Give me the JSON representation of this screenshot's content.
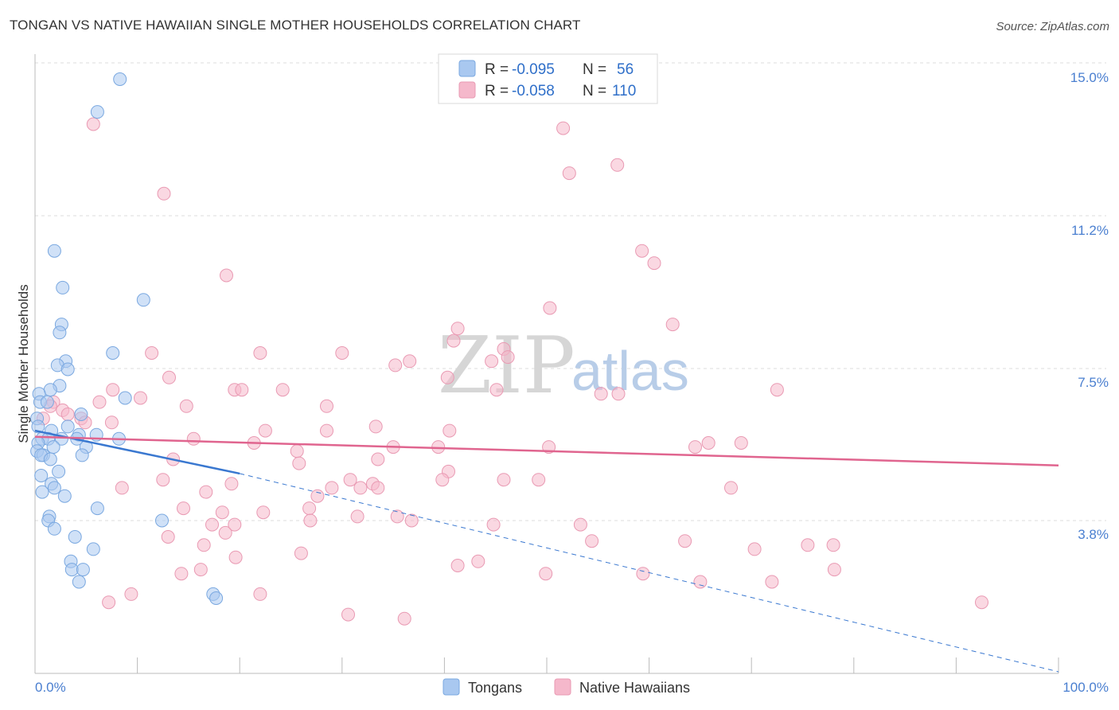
{
  "header": {
    "title": "TONGAN VS NATIVE HAWAIIAN SINGLE MOTHER HOUSEHOLDS CORRELATION CHART",
    "source": "Source: ZipAtlas.com"
  },
  "watermark": {
    "zip": "ZIP",
    "atlas": "atlas"
  },
  "legend": {
    "rows": [
      {
        "r_label": "R =",
        "r_value": "-0.095",
        "n_label": "N =",
        "n_value": "56",
        "color": "#a9c8f0"
      },
      {
        "r_label": "R =",
        "r_value": "-0.058",
        "n_label": "N =",
        "n_value": "110",
        "color": "#f5b8cb"
      }
    ]
  },
  "bottom_legend": {
    "items": [
      {
        "label": "Tongans",
        "color": "#a9c8f0"
      },
      {
        "label": "Native Hawaiians",
        "color": "#f5b8cb"
      }
    ]
  },
  "chart_data": {
    "type": "scatter",
    "title": "TONGAN VS NATIVE HAWAIIAN SINGLE MOTHER HOUSEHOLDS CORRELATION CHART",
    "xlabel": "",
    "ylabel": "Single Mother Households",
    "xlim": [
      0,
      100
    ],
    "ylim": [
      0,
      15.5
    ],
    "x_tick_labels": [
      "0.0%",
      "100.0%"
    ],
    "y_ticks": [
      3.8,
      7.5,
      11.2,
      15.0
    ],
    "y_tick_labels": [
      "3.8%",
      "7.5%",
      "11.2%",
      "15.0%"
    ],
    "grid": true,
    "legend_position": "top-center",
    "series": [
      {
        "name": "Tongans",
        "color": "#a9c8f0",
        "edge": "#7aa8e0",
        "trend": {
          "x0": 0,
          "y0": 6.0,
          "x1": 20,
          "y1": 4.95,
          "dashed_to_x": 100,
          "dashed_to_y": 0.1,
          "color": "#3a78d0"
        },
        "points": [
          [
            8.3,
            14.6
          ],
          [
            6.1,
            13.8
          ],
          [
            1.9,
            10.4
          ],
          [
            2.7,
            9.5
          ],
          [
            10.6,
            9.2
          ],
          [
            2.6,
            8.6
          ],
          [
            2.4,
            8.4
          ],
          [
            7.6,
            7.9
          ],
          [
            3.0,
            7.7
          ],
          [
            2.2,
            7.6
          ],
          [
            3.2,
            7.5
          ],
          [
            2.4,
            7.1
          ],
          [
            1.5,
            7.0
          ],
          [
            0.4,
            6.9
          ],
          [
            0.5,
            6.7
          ],
          [
            8.8,
            6.8
          ],
          [
            1.2,
            6.7
          ],
          [
            4.5,
            6.4
          ],
          [
            0.2,
            6.3
          ],
          [
            1.6,
            6.0
          ],
          [
            3.2,
            6.1
          ],
          [
            4.3,
            5.9
          ],
          [
            6.0,
            5.9
          ],
          [
            0.7,
            5.8
          ],
          [
            1.3,
            5.8
          ],
          [
            0.3,
            5.7
          ],
          [
            2.6,
            5.8
          ],
          [
            4.1,
            5.8
          ],
          [
            8.2,
            5.8
          ],
          [
            0.2,
            5.5
          ],
          [
            1.8,
            5.6
          ],
          [
            5.0,
            5.6
          ],
          [
            0.8,
            5.4
          ],
          [
            0.6,
            5.4
          ],
          [
            4.6,
            5.4
          ],
          [
            1.5,
            5.3
          ],
          [
            0.6,
            4.9
          ],
          [
            2.3,
            5.0
          ],
          [
            1.6,
            4.7
          ],
          [
            1.9,
            4.6
          ],
          [
            0.7,
            4.5
          ],
          [
            2.9,
            4.4
          ],
          [
            6.1,
            4.1
          ],
          [
            1.4,
            3.9
          ],
          [
            1.3,
            3.8
          ],
          [
            12.4,
            3.8
          ],
          [
            1.9,
            3.6
          ],
          [
            3.9,
            3.4
          ],
          [
            5.7,
            3.1
          ],
          [
            3.5,
            2.8
          ],
          [
            3.6,
            2.6
          ],
          [
            4.7,
            2.6
          ],
          [
            4.3,
            2.3
          ],
          [
            17.4,
            2.0
          ],
          [
            17.7,
            1.9
          ],
          [
            0.3,
            6.1
          ]
        ]
      },
      {
        "name": "Native Hawaiians",
        "color": "#f5b8cb",
        "edge": "#e99ab3",
        "trend": {
          "x0": 0,
          "y0": 5.85,
          "x1": 100,
          "y1": 5.15,
          "color": "#e0658f"
        },
        "points": [
          [
            5.7,
            13.5
          ],
          [
            12.6,
            11.8
          ],
          [
            52.2,
            12.3
          ],
          [
            56.9,
            12.5
          ],
          [
            51.6,
            13.4
          ],
          [
            18.7,
            9.8
          ],
          [
            59.3,
            10.4
          ],
          [
            60.5,
            10.1
          ],
          [
            50.3,
            9.0
          ],
          [
            62.3,
            8.6
          ],
          [
            41.3,
            8.5
          ],
          [
            40.9,
            8.2
          ],
          [
            45.8,
            8.0
          ],
          [
            11.4,
            7.9
          ],
          [
            22.0,
            7.9
          ],
          [
            30.0,
            7.9
          ],
          [
            46.2,
            7.8
          ],
          [
            44.6,
            7.7
          ],
          [
            36.6,
            7.7
          ],
          [
            35.2,
            7.6
          ],
          [
            40.3,
            7.3
          ],
          [
            13.1,
            7.3
          ],
          [
            7.6,
            7.0
          ],
          [
            19.5,
            7.0
          ],
          [
            20.2,
            7.0
          ],
          [
            45.1,
            7.0
          ],
          [
            24.2,
            7.0
          ],
          [
            55.3,
            6.9
          ],
          [
            57.0,
            6.9
          ],
          [
            72.5,
            7.0
          ],
          [
            10.3,
            6.8
          ],
          [
            6.3,
            6.7
          ],
          [
            1.8,
            6.7
          ],
          [
            2.7,
            6.5
          ],
          [
            3.2,
            6.4
          ],
          [
            4.5,
            6.3
          ],
          [
            0.8,
            6.3
          ],
          [
            4.9,
            6.2
          ],
          [
            1.5,
            6.6
          ],
          [
            7.5,
            6.2
          ],
          [
            14.8,
            6.6
          ],
          [
            28.5,
            6.6
          ],
          [
            33.3,
            6.1
          ],
          [
            40.5,
            6.0
          ],
          [
            28.5,
            6.0
          ],
          [
            22.5,
            6.0
          ],
          [
            15.5,
            5.8
          ],
          [
            21.4,
            5.7
          ],
          [
            35.0,
            5.6
          ],
          [
            25.6,
            5.5
          ],
          [
            39.4,
            5.6
          ],
          [
            50.2,
            5.6
          ],
          [
            65.8,
            5.7
          ],
          [
            69.0,
            5.7
          ],
          [
            64.5,
            5.6
          ],
          [
            13.5,
            5.3
          ],
          [
            25.8,
            5.2
          ],
          [
            33.5,
            5.3
          ],
          [
            40.4,
            5.0
          ],
          [
            45.8,
            4.8
          ],
          [
            30.8,
            4.8
          ],
          [
            39.8,
            4.8
          ],
          [
            49.2,
            4.8
          ],
          [
            29.0,
            4.6
          ],
          [
            31.8,
            4.6
          ],
          [
            33.0,
            4.7
          ],
          [
            68.0,
            4.6
          ],
          [
            12.5,
            4.8
          ],
          [
            19.2,
            4.7
          ],
          [
            33.5,
            4.6
          ],
          [
            8.5,
            4.6
          ],
          [
            16.7,
            4.5
          ],
          [
            27.6,
            4.4
          ],
          [
            14.5,
            4.1
          ],
          [
            18.3,
            4.0
          ],
          [
            22.3,
            4.0
          ],
          [
            26.8,
            4.1
          ],
          [
            31.5,
            3.9
          ],
          [
            35.4,
            3.9
          ],
          [
            36.8,
            3.8
          ],
          [
            44.8,
            3.7
          ],
          [
            17.3,
            3.7
          ],
          [
            19.5,
            3.7
          ],
          [
            26.9,
            3.8
          ],
          [
            18.6,
            3.5
          ],
          [
            53.3,
            3.7
          ],
          [
            63.5,
            3.3
          ],
          [
            54.4,
            3.3
          ],
          [
            70.3,
            3.1
          ],
          [
            75.5,
            3.2
          ],
          [
            78.0,
            3.2
          ],
          [
            16.5,
            3.2
          ],
          [
            13.0,
            3.4
          ],
          [
            43.3,
            2.8
          ],
          [
            41.3,
            2.7
          ],
          [
            49.9,
            2.5
          ],
          [
            59.4,
            2.5
          ],
          [
            65.0,
            2.3
          ],
          [
            72.0,
            2.3
          ],
          [
            78.1,
            2.6
          ],
          [
            92.5,
            1.8
          ],
          [
            26.0,
            3.0
          ],
          [
            19.6,
            2.9
          ],
          [
            14.3,
            2.5
          ],
          [
            16.2,
            2.6
          ],
          [
            9.4,
            2.0
          ],
          [
            7.2,
            1.8
          ],
          [
            30.6,
            1.5
          ],
          [
            36.1,
            1.4
          ],
          [
            22.0,
            2.0
          ]
        ]
      }
    ]
  }
}
